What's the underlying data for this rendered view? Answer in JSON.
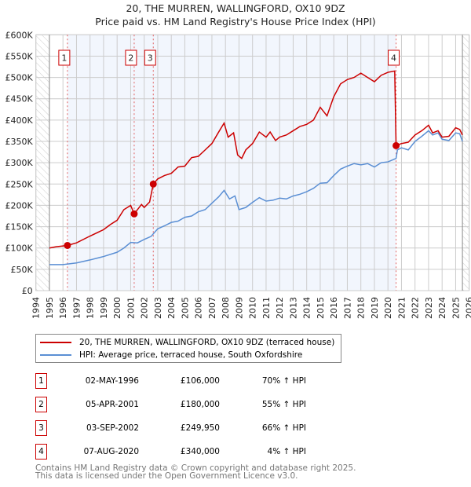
{
  "chart_data": {
    "type": "line",
    "title": "20, THE MURREN, WALLINGFORD, OX10 9DZ",
    "subtitle": "Price paid vs. HM Land Registry's House Price Index (HPI)",
    "xlim": [
      1994,
      2026
    ],
    "ylim": [
      0,
      600000
    ],
    "x_ticks": [
      "1994",
      "1995",
      "1996",
      "1997",
      "1998",
      "1999",
      "2000",
      "2001",
      "2002",
      "2003",
      "2004",
      "2005",
      "2006",
      "2007",
      "2008",
      "2009",
      "2010",
      "2011",
      "2012",
      "2013",
      "2014",
      "2015",
      "2016",
      "2017",
      "2018",
      "2019",
      "2020",
      "2021",
      "2022",
      "2023",
      "2024",
      "2025",
      "2026"
    ],
    "y_ticks": [
      {
        "v": 0,
        "label": "£0"
      },
      {
        "v": 50000,
        "label": "£50K"
      },
      {
        "v": 100000,
        "label": "£100K"
      },
      {
        "v": 150000,
        "label": "£150K"
      },
      {
        "v": 200000,
        "label": "£200K"
      },
      {
        "v": 250000,
        "label": "£250K"
      },
      {
        "v": 300000,
        "label": "£300K"
      },
      {
        "v": 350000,
        "label": "£350K"
      },
      {
        "v": 400000,
        "label": "£400K"
      },
      {
        "v": 450000,
        "label": "£450K"
      },
      {
        "v": 500000,
        "label": "£500K"
      },
      {
        "v": 550000,
        "label": "£550K"
      },
      {
        "v": 600000,
        "label": "£600K"
      }
    ],
    "grid": true,
    "data_range": [
      1995,
      2025.5
    ],
    "series": [
      {
        "name": "20, THE MURREN, WALLINGFORD, OX10 9DZ (terraced house)",
        "color": "#cc0000",
        "x": [
          1995,
          1995.5,
          1996.33,
          1997,
          1998,
          1999,
          1999.5,
          2000,
          2000.5,
          2001,
          2001.26,
          2001.8,
          2002,
          2002.4,
          2002.67,
          2003,
          2003.5,
          2004,
          2004.5,
          2005,
          2005.5,
          2006,
          2006.5,
          2007,
          2007.5,
          2007.9,
          2008.2,
          2008.6,
          2008.9,
          2009.2,
          2009.5,
          2010,
          2010.5,
          2011,
          2011.3,
          2011.7,
          2012,
          2012.5,
          2013,
          2013.5,
          2014,
          2014.5,
          2015,
          2015.5,
          2016,
          2016.5,
          2017,
          2017.5,
          2018,
          2018.5,
          2019,
          2019.5,
          2020,
          2020.5,
          2020.6,
          2021,
          2021.5,
          2022,
          2022.5,
          2023,
          2023.3,
          2023.7,
          2024,
          2024.5,
          2025,
          2025.3,
          2025.5
        ],
        "y": [
          100000,
          103000,
          106000,
          112000,
          128000,
          143000,
          155000,
          165000,
          190000,
          200000,
          180000,
          202000,
          195000,
          208000,
          249950,
          262000,
          270000,
          275000,
          290000,
          292000,
          312000,
          315000,
          330000,
          345000,
          372000,
          393000,
          360000,
          370000,
          318000,
          310000,
          330000,
          345000,
          372000,
          360000,
          372000,
          352000,
          360000,
          365000,
          375000,
          385000,
          390000,
          400000,
          430000,
          410000,
          455000,
          485000,
          495000,
          500000,
          510000,
          500000,
          490000,
          505000,
          512000,
          515000,
          340000,
          345000,
          348000,
          365000,
          375000,
          388000,
          370000,
          375000,
          360000,
          362000,
          382000,
          378000,
          365000
        ]
      },
      {
        "name": "HPI: Average price, terraced house, South Oxfordshire",
        "color": "#5b8fd4",
        "x": [
          1995,
          1996,
          1997,
          1998,
          1999,
          2000,
          2000.5,
          2001,
          2001.5,
          2002,
          2002.5,
          2003,
          2003.5,
          2004,
          2004.5,
          2005,
          2005.5,
          2006,
          2006.5,
          2007,
          2007.5,
          2007.9,
          2008.3,
          2008.7,
          2009,
          2009.5,
          2010,
          2010.5,
          2011,
          2011.5,
          2012,
          2012.5,
          2013,
          2013.5,
          2014,
          2014.5,
          2015,
          2015.5,
          2016,
          2016.5,
          2017,
          2017.5,
          2018,
          2018.5,
          2019,
          2019.5,
          2020,
          2020.6,
          2020.7,
          2021,
          2021.5,
          2022,
          2022.5,
          2023,
          2023.3,
          2023.7,
          2024,
          2024.5,
          2025,
          2025.3,
          2025.5
        ],
        "y": [
          61000,
          61000,
          65000,
          72000,
          80000,
          90000,
          100000,
          113000,
          112000,
          120000,
          127000,
          145000,
          152000,
          160000,
          163000,
          172000,
          175000,
          185000,
          190000,
          205000,
          220000,
          235000,
          215000,
          222000,
          190000,
          195000,
          207000,
          218000,
          210000,
          212000,
          217000,
          215000,
          222000,
          226000,
          232000,
          240000,
          252000,
          253000,
          270000,
          285000,
          292000,
          298000,
          295000,
          298000,
          290000,
          300000,
          302000,
          310000,
          330000,
          335000,
          330000,
          350000,
          362000,
          375000,
          365000,
          370000,
          355000,
          352000,
          370000,
          368000,
          350000
        ]
      }
    ],
    "sales": [
      {
        "num": "1",
        "x": 1996.33,
        "price": 106000
      },
      {
        "num": "2",
        "x": 2001.26,
        "price": 180000
      },
      {
        "num": "3",
        "x": 2002.67,
        "price": 249950
      },
      {
        "num": "4",
        "x": 2020.6,
        "price": 340000
      }
    ]
  },
  "header": {
    "title": "20, THE MURREN, WALLINGFORD, OX10 9DZ",
    "subtitle": "Price paid vs. HM Land Registry's House Price Index (HPI)"
  },
  "legend": {
    "property": "20, THE MURREN, WALLINGFORD, OX10 9DZ (terraced house)",
    "hpi": "HPI: Average price, terraced house, South Oxfordshire"
  },
  "transactions": [
    {
      "num": "1",
      "date": "02-MAY-1996",
      "price": "£106,000",
      "hpi": "70% ↑ HPI"
    },
    {
      "num": "2",
      "date": "05-APR-2001",
      "price": "£180,000",
      "hpi": "55% ↑ HPI"
    },
    {
      "num": "3",
      "date": "03-SEP-2002",
      "price": "£249,950",
      "hpi": "66% ↑ HPI"
    },
    {
      "num": "4",
      "date": "07-AUG-2020",
      "price": "£340,000",
      "hpi": "4% ↑ HPI"
    }
  ],
  "footer": {
    "line1": "Contains HM Land Registry data © Crown copyright and database right 2025.",
    "line2": "This data is licensed under the Open Government Licence v3.0."
  }
}
